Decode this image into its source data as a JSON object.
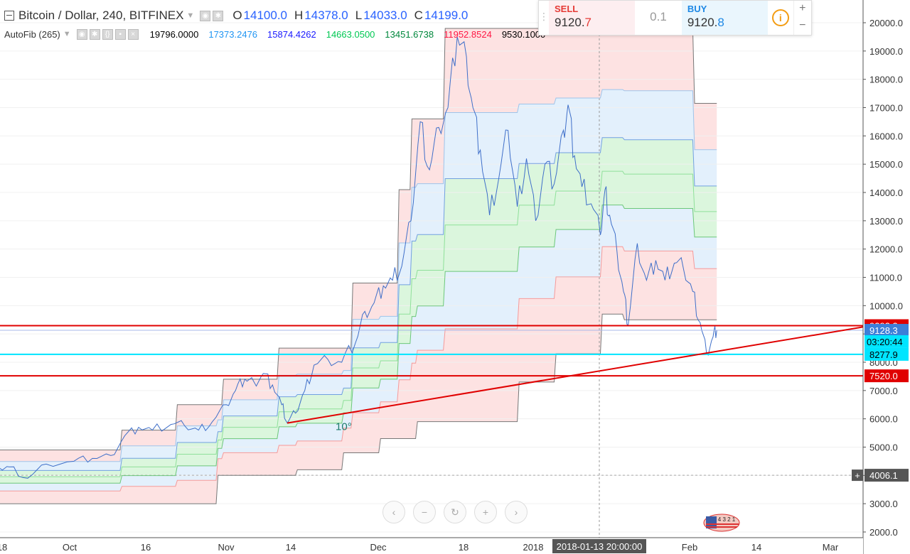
{
  "header": {
    "symbol_title": "Bitcoin / Dollar, 240, BITFINEX",
    "ohlc": [
      {
        "key": "O",
        "value": "14100.0"
      },
      {
        "key": "H",
        "value": "14378.0"
      },
      {
        "key": "L",
        "value": "14033.0"
      },
      {
        "key": "C",
        "value": "14199.0"
      }
    ],
    "indicator_name": "AutoFib (265)",
    "fib_values": [
      {
        "value": "19796.0000",
        "color": "#000000"
      },
      {
        "value": "17373.2476",
        "color": "#2196f3"
      },
      {
        "value": "15874.4262",
        "color": "#1a1aff"
      },
      {
        "value": "14663.0500",
        "color": "#00c853"
      },
      {
        "value": "13451.6738",
        "color": "#00873c"
      },
      {
        "value": "11952.8524",
        "color": "#ff1744"
      },
      {
        "value": "9530.1000",
        "color": "#000000"
      }
    ]
  },
  "trade_panel": {
    "sell_label": "SELL",
    "sell_price_main": "9120.",
    "sell_price_tail": "7",
    "quantity": "0.1",
    "buy_label": "BUY",
    "buy_price_main": "9120.",
    "buy_price_tail": "8",
    "info_symbol": "i",
    "plus": "+",
    "minus": "−"
  },
  "logo_text": "4 3 2 1",
  "chart_data": {
    "type": "line",
    "ylim": [
      1800,
      21000
    ],
    "y_ticks": [
      "20000.0",
      "19000.0",
      "18000.0",
      "17000.0",
      "16000.0",
      "15000.0",
      "14000.0",
      "13000.0",
      "12000.0",
      "11000.0",
      "10000.0",
      "9000.0",
      "8000.0",
      "7000.0",
      "6000.0",
      "5000.0",
      "4000.0",
      "3000.0",
      "2000.0"
    ],
    "x_ticks": [
      "18",
      "Oct",
      "16",
      "Nov",
      "14",
      "Dec",
      "18",
      "2018",
      "Feb",
      "14",
      "Mar"
    ],
    "crosshair_time": "2018-01-13 20:00:00",
    "crosshair_remaining": "03:20:44",
    "price_labels": [
      {
        "text": "9293.3",
        "value": 9293.3,
        "bg": "#e00000"
      },
      {
        "text": "9128.3",
        "value": 9128.3,
        "bg": "#3d7fd8"
      },
      {
        "text": "8277.9",
        "value": 8277.9,
        "bg": "#00e5ff"
      },
      {
        "text": "7520.0",
        "value": 7520.0,
        "bg": "#e00000"
      },
      {
        "text": "4006.1",
        "value": 4006.1,
        "bg": "#555555"
      }
    ],
    "horizontal_lines": [
      {
        "value": 9293.3,
        "color": "#e00000"
      },
      {
        "value": 8277.9,
        "color": "#00e5ff"
      },
      {
        "value": 7520.0,
        "color": "#e00000"
      }
    ],
    "trendline": {
      "x1": 0.311,
      "y1": 5850,
      "x2": 0.943,
      "y2": 9293.3,
      "label": "10°"
    },
    "price_series": [
      [
        0.0,
        4250
      ],
      [
        0.01,
        4300
      ],
      [
        0.03,
        3900
      ],
      [
        0.05,
        4400
      ],
      [
        0.08,
        4500
      ],
      [
        0.1,
        4600
      ],
      [
        0.12,
        4700
      ],
      [
        0.135,
        5400
      ],
      [
        0.15,
        5700
      ],
      [
        0.165,
        5600
      ],
      [
        0.185,
        5800
      ],
      [
        0.2,
        5750
      ],
      [
        0.215,
        5600
      ],
      [
        0.23,
        5900
      ],
      [
        0.245,
        6500
      ],
      [
        0.255,
        7000
      ],
      [
        0.265,
        7400
      ],
      [
        0.275,
        7300
      ],
      [
        0.285,
        7600
      ],
      [
        0.295,
        7200
      ],
      [
        0.305,
        6500
      ],
      [
        0.311,
        5850
      ],
      [
        0.32,
        6200
      ],
      [
        0.33,
        7000
      ],
      [
        0.34,
        7900
      ],
      [
        0.355,
        8100
      ],
      [
        0.37,
        8000
      ],
      [
        0.385,
        8700
      ],
      [
        0.395,
        9800
      ],
      [
        0.405,
        10100
      ],
      [
        0.415,
        10700
      ],
      [
        0.425,
        10900
      ],
      [
        0.435,
        11400
      ],
      [
        0.445,
        13000
      ],
      [
        0.455,
        16500
      ],
      [
        0.465,
        14800
      ],
      [
        0.475,
        16300
      ],
      [
        0.485,
        17000
      ],
      [
        0.495,
        19500
      ],
      [
        0.505,
        18800
      ],
      [
        0.512,
        17000
      ],
      [
        0.52,
        15500
      ],
      [
        0.53,
        13200
      ],
      [
        0.54,
        14500
      ],
      [
        0.55,
        16200
      ],
      [
        0.56,
        13500
      ],
      [
        0.57,
        15200
      ],
      [
        0.58,
        13000
      ],
      [
        0.59,
        15000
      ],
      [
        0.6,
        14300
      ],
      [
        0.61,
        16200
      ],
      [
        0.615,
        17100
      ],
      [
        0.622,
        15300
      ],
      [
        0.63,
        14200
      ],
      [
        0.64,
        13600
      ],
      [
        0.65,
        12500
      ],
      [
        0.655,
        14100
      ],
      [
        0.66,
        13200
      ],
      [
        0.668,
        11900
      ],
      [
        0.675,
        10500
      ],
      [
        0.68,
        9300
      ],
      [
        0.69,
        12200
      ],
      [
        0.7,
        10900
      ],
      [
        0.71,
        11600
      ],
      [
        0.72,
        10900
      ],
      [
        0.73,
        11500
      ],
      [
        0.74,
        11300
      ],
      [
        0.75,
        10500
      ],
      [
        0.758,
        9400
      ],
      [
        0.765,
        8300
      ],
      [
        0.772,
        8900
      ],
      [
        0.776,
        9130
      ]
    ],
    "fib_levels_max": [
      [
        0.0,
        4900
      ],
      [
        0.13,
        4900
      ],
      [
        0.13,
        5600
      ],
      [
        0.19,
        5600
      ],
      [
        0.19,
        6500
      ],
      [
        0.24,
        6500
      ],
      [
        0.24,
        7400
      ],
      [
        0.3,
        7400
      ],
      [
        0.3,
        8500
      ],
      [
        0.38,
        8500
      ],
      [
        0.38,
        10800
      ],
      [
        0.43,
        10800
      ],
      [
        0.43,
        14100
      ],
      [
        0.445,
        14100
      ],
      [
        0.445,
        16600
      ],
      [
        0.48,
        16600
      ],
      [
        0.48,
        19800
      ],
      [
        0.75,
        19800
      ],
      [
        0.75,
        17150
      ],
      [
        0.776,
        17150
      ]
    ],
    "fib_levels_min": [
      [
        0.0,
        3000
      ],
      [
        0.235,
        3000
      ],
      [
        0.235,
        4000
      ],
      [
        0.32,
        4000
      ],
      [
        0.32,
        4200
      ],
      [
        0.37,
        4200
      ],
      [
        0.37,
        4800
      ],
      [
        0.41,
        4800
      ],
      [
        0.41,
        5300
      ],
      [
        0.45,
        5300
      ],
      [
        0.45,
        5900
      ],
      [
        0.56,
        5900
      ],
      [
        0.56,
        7300
      ],
      [
        0.6,
        7300
      ],
      [
        0.6,
        8300
      ],
      [
        0.65,
        8300
      ],
      [
        0.65,
        9700
      ],
      [
        0.675,
        9700
      ],
      [
        0.675,
        9500
      ],
      [
        0.776,
        9500
      ]
    ]
  }
}
